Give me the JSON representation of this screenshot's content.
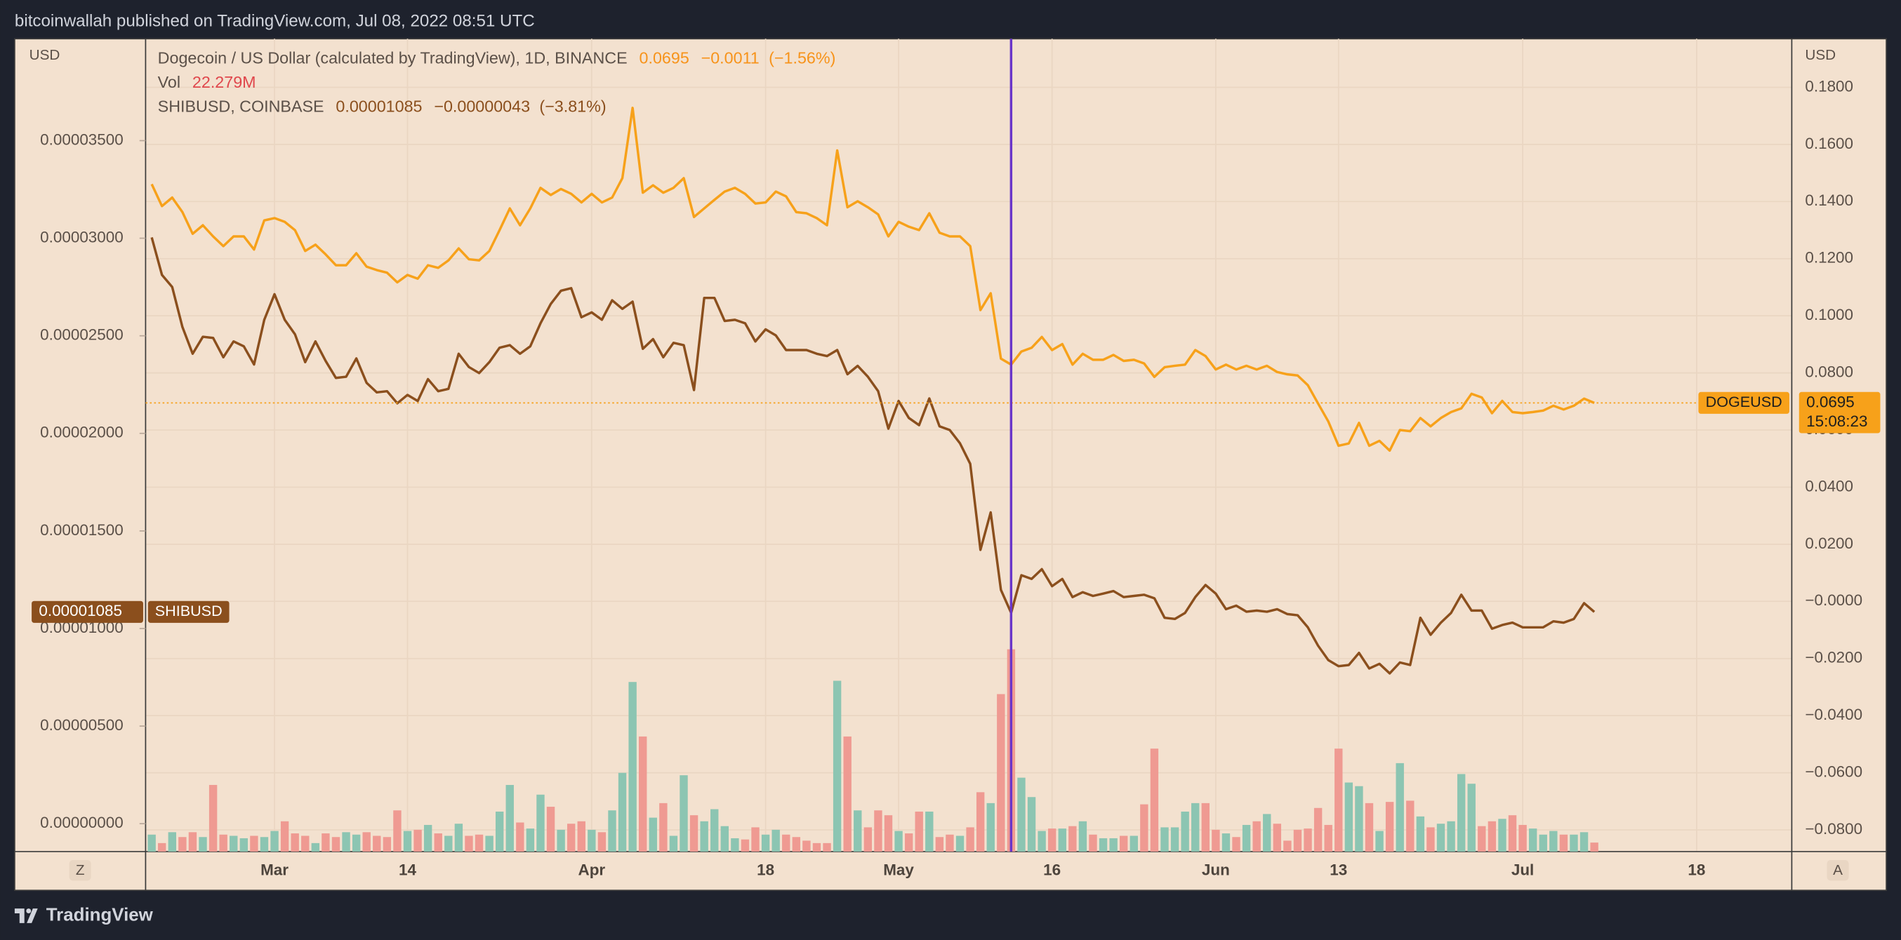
{
  "header": {
    "publisher": "bitcoinwallah published on TradingView.com, Jul 08, 2022 08:51 UTC",
    "brand": "TradingView"
  },
  "chart_data": {
    "type": "line",
    "legend": {
      "doge_title": "Dogecoin / US Dollar (calculated by TradingView), 1D, BINANCE",
      "doge_change": "−0.0011",
      "doge_change_pct": "(−1.56%)",
      "vol_last": "22.279M",
      "shib_title": "SHIBUSD, COINBASE",
      "shib_change": "−0.00000043",
      "shib_change_pct": "(−3.81%)"
    },
    "y_axis_label": "USD",
    "y2_axis_label": "USD",
    "countdown": "15:08:23",
    "axis_buttons": [
      "Z",
      "A"
    ],
    "grid": true,
    "xlim": [
      -0.6,
      160.3
    ],
    "xticks": [
      {
        "value": 12,
        "label": "Mar"
      },
      {
        "value": 25,
        "label": "14"
      },
      {
        "value": 43,
        "label": "Apr"
      },
      {
        "value": 60,
        "label": "18"
      },
      {
        "value": 73,
        "label": "May"
      },
      {
        "value": 88,
        "label": "16"
      },
      {
        "value": 104,
        "label": "Jun"
      },
      {
        "value": 116,
        "label": "13"
      },
      {
        "value": 134,
        "label": "Jul"
      },
      {
        "value": 151,
        "label": "18"
      }
    ],
    "ylim": [
      -1.43e-06,
      4.022e-05
    ],
    "yticks": [
      {
        "value": 0,
        "label": "0.00000000"
      },
      {
        "value": 5e-06,
        "label": "0.00000500"
      },
      {
        "value": 1e-05,
        "label": "0.00001000"
      },
      {
        "value": 1.5e-05,
        "label": "0.00001500"
      },
      {
        "value": 2e-05,
        "label": "0.00002000"
      },
      {
        "value": 2.5e-05,
        "label": "0.00002500"
      },
      {
        "value": 3e-05,
        "label": "0.00003000"
      },
      {
        "value": 3.5e-05,
        "label": "0.00003500"
      }
    ],
    "y2lim": [
      -0.0876,
      0.197
    ],
    "y2ticks": [
      {
        "value": -0.08,
        "label": "−0.0800"
      },
      {
        "value": -0.06,
        "label": "−0.0600"
      },
      {
        "value": -0.04,
        "label": "−0.0400"
      },
      {
        "value": -0.02,
        "label": "−0.0200"
      },
      {
        "value": 0,
        "label": "−0.0000"
      },
      {
        "value": 0.02,
        "label": "0.0200"
      },
      {
        "value": 0.04,
        "label": "0.0400"
      },
      {
        "value": 0.06,
        "label": "0.0600"
      },
      {
        "value": 0.08,
        "label": "0.0800"
      },
      {
        "value": 0.1,
        "label": "0.1000"
      },
      {
        "value": 0.12,
        "label": "0.1200"
      },
      {
        "value": 0.14,
        "label": "0.1400"
      },
      {
        "value": 0.16,
        "label": "0.1600"
      },
      {
        "value": 0.18,
        "label": "0.1800"
      }
    ],
    "series": [
      {
        "name": "DOGEUSD",
        "color": "#f7a11a",
        "axis": "y2",
        "values": [
          0.1461,
          0.1384,
          0.1414,
          0.1363,
          0.1287,
          0.1317,
          0.1278,
          0.1244,
          0.1278,
          0.1278,
          0.1232,
          0.1334,
          0.1342,
          0.1329,
          0.13,
          0.1227,
          0.1249,
          0.1215,
          0.1177,
          0.1177,
          0.1219,
          0.1172,
          0.116,
          0.1151,
          0.1117,
          0.1143,
          0.113,
          0.1177,
          0.1168,
          0.1194,
          0.1236,
          0.1198,
          0.1194,
          0.1227,
          0.13,
          0.1376,
          0.1317,
          0.1376,
          0.1448,
          0.1423,
          0.1444,
          0.1427,
          0.1397,
          0.1427,
          0.1397,
          0.1414,
          0.1482,
          0.1728,
          0.1431,
          0.1457,
          0.1431,
          0.1448,
          0.1482,
          0.1346,
          0.1376,
          0.1406,
          0.1435,
          0.1448,
          0.1427,
          0.1393,
          0.1397,
          0.1435,
          0.1418,
          0.1363,
          0.1359,
          0.1342,
          0.1317,
          0.1579,
          0.138,
          0.1401,
          0.138,
          0.1355,
          0.1278,
          0.1329,
          0.1312,
          0.13,
          0.1359,
          0.1291,
          0.1278,
          0.1278,
          0.1244,
          0.102,
          0.1079,
          0.085,
          0.0829,
          0.0875,
          0.0888,
          0.0926,
          0.088,
          0.0901,
          0.0829,
          0.0867,
          0.0846,
          0.0846,
          0.0863,
          0.0842,
          0.0846,
          0.0833,
          0.0786,
          0.082,
          0.0825,
          0.0829,
          0.088,
          0.0859,
          0.0812,
          0.0829,
          0.0812,
          0.0825,
          0.0812,
          0.0825,
          0.0803,
          0.0795,
          0.0791,
          0.0757,
          0.0693,
          0.063,
          0.0545,
          0.0553,
          0.0625,
          0.0545,
          0.0562,
          0.0528,
          0.06,
          0.0596,
          0.0642,
          0.0613,
          0.0642,
          0.0663,
          0.0676,
          0.0727,
          0.0714,
          0.0659,
          0.0702,
          0.0663,
          0.0659,
          0.0663,
          0.0668,
          0.0685,
          0.0672,
          0.0685,
          0.071,
          0.0695
        ]
      },
      {
        "name": "SHIBUSD",
        "color": "#8b4f1d",
        "values": [
          3.004e-05,
          2.812e-05,
          2.75e-05,
          2.545e-05,
          2.408e-05,
          2.495e-05,
          2.489e-05,
          2.39e-05,
          2.471e-05,
          2.446e-05,
          2.353e-05,
          2.582e-05,
          2.713e-05,
          2.582e-05,
          2.508e-05,
          2.365e-05,
          2.471e-05,
          2.371e-05,
          2.284e-05,
          2.29e-05,
          2.384e-05,
          2.259e-05,
          2.21e-05,
          2.216e-05,
          2.154e-05,
          2.197e-05,
          2.166e-05,
          2.278e-05,
          2.216e-05,
          2.228e-05,
          2.408e-05,
          2.34e-05,
          2.309e-05,
          2.365e-05,
          2.439e-05,
          2.452e-05,
          2.408e-05,
          2.446e-05,
          2.564e-05,
          2.663e-05,
          2.731e-05,
          2.744e-05,
          2.595e-05,
          2.62e-05,
          2.582e-05,
          2.682e-05,
          2.638e-05,
          2.675e-05,
          2.433e-05,
          2.483e-05,
          2.39e-05,
          2.464e-05,
          2.452e-05,
          2.222e-05,
          2.694e-05,
          2.694e-05,
          2.576e-05,
          2.582e-05,
          2.564e-05,
          2.471e-05,
          2.533e-05,
          2.502e-05,
          2.427e-05,
          2.427e-05,
          2.427e-05,
          2.408e-05,
          2.396e-05,
          2.427e-05,
          2.303e-05,
          2.346e-05,
          2.29e-05,
          2.216e-05,
          2.024e-05,
          2.166e-05,
          2.079e-05,
          2.042e-05,
          2.179e-05,
          2.036e-05,
          2.017e-05,
          1.949e-05,
          1.844e-05,
          1.403e-05,
          1.595e-05,
          1.198e-05,
          1.08e-05,
          1.273e-05,
          1.254e-05,
          1.304e-05,
          1.217e-05,
          1.254e-05,
          1.161e-05,
          1.186e-05,
          1.167e-05,
          1.179e-05,
          1.192e-05,
          1.161e-05,
          1.167e-05,
          1.173e-05,
          1.155e-05,
          1.055e-05,
          1.049e-05,
          1.08e-05,
          1.161e-05,
          1.223e-05,
          1.179e-05,
          1.099e-05,
          1.117e-05,
          1.086e-05,
          1.092e-05,
          1.086e-05,
          1.099e-05,
          1.074e-05,
          1.068e-05,
          1.006e-05,
          9.12e-06,
          8.38e-06,
          8.07e-06,
          8.13e-06,
          8.75e-06,
          7.95e-06,
          8.19e-06,
          7.7e-06,
          8.26e-06,
          8.13e-06,
          1.055e-05,
          9.68e-06,
          1.03e-05,
          1.08e-05,
          1.173e-05,
          1.092e-05,
          1.092e-05,
          9.99e-06,
          1.018e-05,
          1.03e-05,
          1.006e-05,
          1.006e-05,
          1.006e-05,
          1.037e-05,
          1.03e-05,
          1.049e-05,
          1.13e-05,
          1.085e-05
        ]
      },
      {
        "name": "Vol",
        "type": "bar",
        "color": "#8cc5b2",
        "down_color": "#ef9a92",
        "values": [
          42,
          21,
          48,
          36,
          48,
          36,
          165,
          42,
          39,
          33,
          39,
          36,
          51,
          75,
          45,
          39,
          21,
          45,
          36,
          48,
          42,
          48,
          39,
          36,
          102,
          51,
          54,
          66,
          45,
          39,
          69,
          39,
          42,
          39,
          99,
          165,
          72,
          57,
          141,
          111,
          54,
          69,
          75,
          54,
          48,
          102,
          195,
          420,
          285,
          84,
          120,
          39,
          189,
          90,
          75,
          105,
          63,
          33,
          30,
          60,
          42,
          54,
          42,
          36,
          27,
          21,
          21,
          423,
          285,
          102,
          60,
          102,
          90,
          51,
          45,
          99,
          99,
          36,
          42,
          39,
          60,
          147,
          120,
          390,
          501,
          183,
          135,
          51,
          57,
          57,
          63,
          75,
          42,
          33,
          33,
          39,
          39,
          117,
          255,
          60,
          60,
          99,
          120,
          120,
          54,
          45,
          36,
          66,
          75,
          93,
          69,
          27,
          54,
          57,
          108,
          66,
          255,
          171,
          162,
          120,
          51,
          123,
          219,
          126,
          87,
          60,
          69,
          75,
          192,
          168,
          63,
          75,
          81,
          90,
          66,
          57,
          42,
          51,
          42,
          42,
          48,
          22.279
        ]
      }
    ]
  }
}
